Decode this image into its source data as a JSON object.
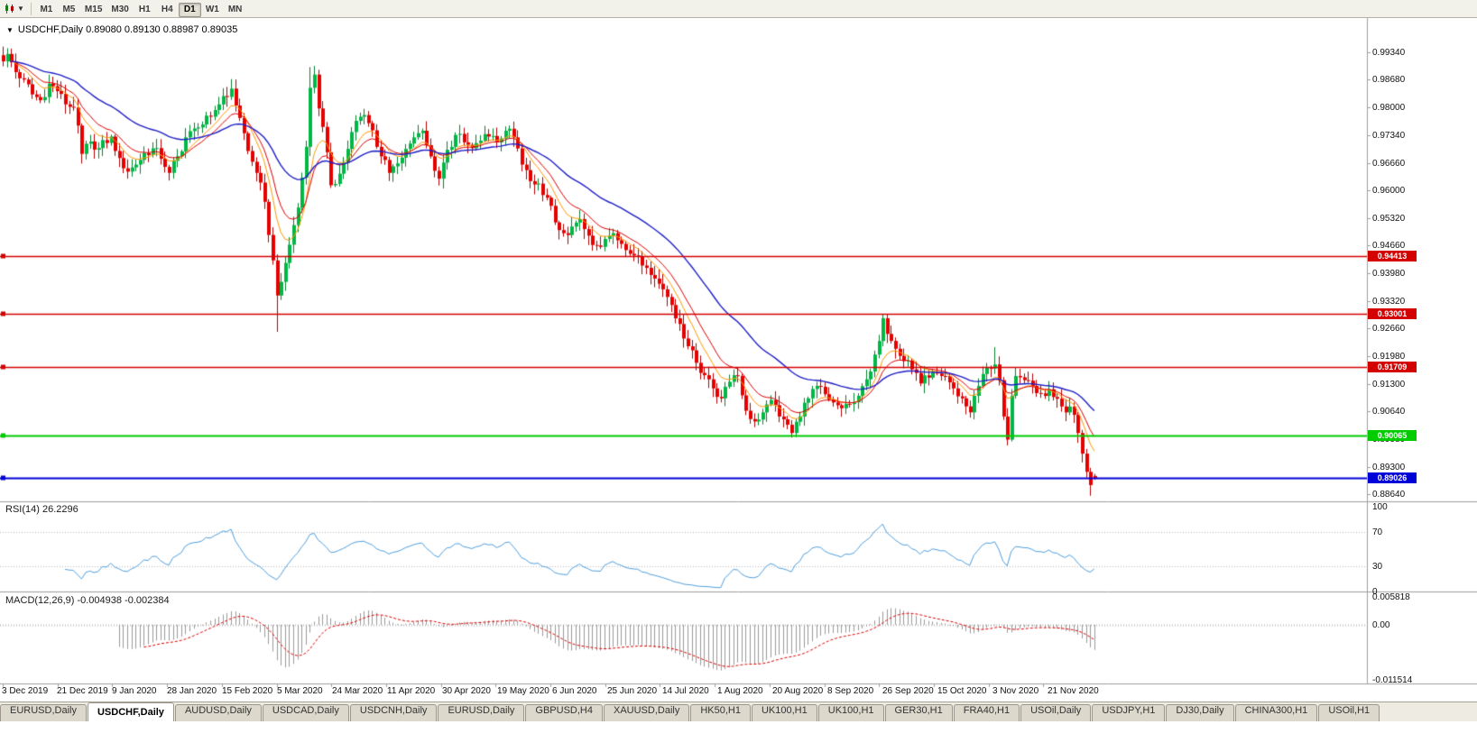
{
  "window": {
    "chart_title": "USDCHF,Daily 0.89080 0.89130 0.88987 0.89035"
  },
  "toolbar": {
    "timeframes": [
      {
        "label": "M1",
        "active": false
      },
      {
        "label": "M5",
        "active": false
      },
      {
        "label": "M15",
        "active": false
      },
      {
        "label": "M30",
        "active": false
      },
      {
        "label": "H1",
        "active": false
      },
      {
        "label": "H4",
        "active": false
      },
      {
        "label": "D1",
        "active": true
      },
      {
        "label": "W1",
        "active": false
      },
      {
        "label": "MN",
        "active": false
      }
    ]
  },
  "main_chart": {
    "y_axis_labels": [
      "0.99340",
      "0.98680",
      "0.98000",
      "0.97340",
      "0.96660",
      "0.96000",
      "0.95320",
      "0.94660",
      "0.93980",
      "0.93320",
      "0.92660",
      "0.91980",
      "0.91300",
      "0.90640",
      "0.89980",
      "0.89300",
      "0.88640"
    ],
    "price_lines": [
      {
        "label": "0.94413",
        "value": 0.94413,
        "color": "#d40000",
        "width": 1.5
      },
      {
        "label": "0.93001",
        "value": 0.93001,
        "color": "#d40000",
        "width": 1.5
      },
      {
        "label": "0.91709",
        "value": 0.91709,
        "color": "#d40000",
        "width": 1.5
      },
      {
        "label": "0.90065",
        "value": 0.90065,
        "color": "#00cc00",
        "width": 2
      },
      {
        "label": "0.89026",
        "value": 0.89026,
        "color": "#0000d8",
        "width": 2
      }
    ]
  },
  "rsi_panel": {
    "label": "RSI(14) 26.2296",
    "period": 14,
    "levels": [
      "100",
      "70",
      "30",
      "0"
    ],
    "line_color": "#4f9fdf"
  },
  "macd_panel": {
    "label": "MACD(12,26,9) -0.004938 -0.002384",
    "scale_labels": [
      "0.005818",
      "0.00",
      "-0.011514"
    ],
    "max": 0.005818,
    "min": -0.011514,
    "histogram_color": "#9a9a9a",
    "signal_color": "#e00000"
  },
  "tabs": {
    "items": [
      {
        "label": "EURUSD,Daily",
        "active": false
      },
      {
        "label": "USDCHF,Daily",
        "active": true
      },
      {
        "label": "AUDUSD,Daily",
        "active": false
      },
      {
        "label": "USDCAD,Daily",
        "active": false
      },
      {
        "label": "USDCNH,Daily",
        "active": false
      },
      {
        "label": "EURUSD,Daily",
        "active": false
      },
      {
        "label": "GBPUSD,H4",
        "active": false
      },
      {
        "label": "XAUUSD,Daily",
        "active": false
      },
      {
        "label": "HK50,H1",
        "active": false
      },
      {
        "label": "UK100,H1",
        "active": false
      },
      {
        "label": "UK100,H1",
        "active": false
      },
      {
        "label": "GER30,H1",
        "active": false
      },
      {
        "label": "FRA40,H1",
        "active": false
      },
      {
        "label": "USOil,Daily",
        "active": false
      },
      {
        "label": "USDJPY,H1",
        "active": false
      },
      {
        "label": "DJ30,Daily",
        "active": false
      },
      {
        "label": "CHINA300,H1",
        "active": false
      },
      {
        "label": "USOil,H1",
        "active": false
      }
    ]
  },
  "chart_data": {
    "type": "candlestick",
    "symbol": "USDCHF",
    "timeframe": "Daily",
    "ohlc_current": {
      "open": 0.8908,
      "high": 0.8913,
      "low": 0.88987,
      "close": 0.89035
    },
    "bars": 264,
    "ylim": [
      0.8864,
      0.9934
    ],
    "colors": {
      "up": "#00b845",
      "down": "#e60000",
      "up_wick": "#067f2e",
      "down_wick": "#b50000"
    },
    "moving_averages": [
      {
        "period": 8,
        "color": "#ff9900",
        "width": 1
      },
      {
        "period": 13,
        "color": "#e00000",
        "width": 1
      },
      {
        "period": 34,
        "color": "#1f1fc8",
        "width": 1.4
      }
    ],
    "x_labels": [
      "3 Dec 2019",
      "21 Dec 2019",
      "9 Jan 2020",
      "28 Jan 2020",
      "15 Feb 2020",
      "5 Mar 2020",
      "24 Mar 2020",
      "11 Apr 2020",
      "30 Apr 2020",
      "19 May 2020",
      "6 Jun 2020",
      "25 Jun 2020",
      "14 Jul 2020",
      "1 Aug 2020",
      "20 Aug 2020",
      "8 Sep 2020",
      "26 Sep 2020",
      "15 Oct 2020",
      "3 Nov 2020",
      "21 Nov 2020"
    ],
    "price_path": [
      [
        0,
        0.9912
      ],
      [
        1,
        0.993
      ],
      [
        3,
        0.9886
      ],
      [
        5,
        0.9868
      ],
      [
        7,
        0.9832
      ],
      [
        9,
        0.9818
      ],
      [
        11,
        0.9858
      ],
      [
        13,
        0.984
      ],
      [
        15,
        0.9808
      ],
      [
        17,
        0.98
      ],
      [
        19,
        0.9688
      ],
      [
        21,
        0.9718
      ],
      [
        23,
        0.9702
      ],
      [
        26,
        0.973
      ],
      [
        28,
        0.9678
      ],
      [
        30,
        0.9645
      ],
      [
        32,
        0.9662
      ],
      [
        34,
        0.969
      ],
      [
        37,
        0.9702
      ],
      [
        40,
        0.9642
      ],
      [
        42,
        0.9682
      ],
      [
        44,
        0.9728
      ],
      [
        47,
        0.9752
      ],
      [
        50,
        0.9778
      ],
      [
        53,
        0.9828
      ],
      [
        55,
        0.9846
      ],
      [
        57,
        0.9775
      ],
      [
        59,
        0.9695
      ],
      [
        61,
        0.9642
      ],
      [
        63,
        0.9572
      ],
      [
        65,
        0.943
      ],
      [
        66,
        0.9345
      ],
      [
        67,
        0.9378
      ],
      [
        69,
        0.9468
      ],
      [
        71,
        0.9558
      ],
      [
        73,
        0.9705
      ],
      [
        74,
        0.9848
      ],
      [
        75,
        0.988
      ],
      [
        76,
        0.9798
      ],
      [
        78,
        0.9692
      ],
      [
        79,
        0.9612
      ],
      [
        81,
        0.964
      ],
      [
        83,
        0.97
      ],
      [
        85,
        0.9768
      ],
      [
        87,
        0.9782
      ],
      [
        89,
        0.9745
      ],
      [
        91,
        0.9682
      ],
      [
        93,
        0.9642
      ],
      [
        95,
        0.9665
      ],
      [
        97,
        0.97
      ],
      [
        99,
        0.9728
      ],
      [
        101,
        0.9744
      ],
      [
        103,
        0.9682
      ],
      [
        105,
        0.9628
      ],
      [
        107,
        0.9698
      ],
      [
        109,
        0.9734
      ],
      [
        111,
        0.9716
      ],
      [
        113,
        0.9702
      ],
      [
        115,
        0.972
      ],
      [
        117,
        0.973
      ],
      [
        119,
        0.9716
      ],
      [
        121,
        0.9744
      ],
      [
        123,
        0.9728
      ],
      [
        125,
        0.9662
      ],
      [
        127,
        0.9622
      ],
      [
        129,
        0.9616
      ],
      [
        131,
        0.9582
      ],
      [
        133,
        0.9522
      ],
      [
        135,
        0.9496
      ],
      [
        137,
        0.9512
      ],
      [
        139,
        0.953
      ],
      [
        141,
        0.949
      ],
      [
        143,
        0.9466
      ],
      [
        145,
        0.9482
      ],
      [
        147,
        0.9496
      ],
      [
        149,
        0.947
      ],
      [
        151,
        0.9446
      ],
      [
        153,
        0.944
      ],
      [
        155,
        0.9412
      ],
      [
        157,
        0.9386
      ],
      [
        159,
        0.936
      ],
      [
        161,
        0.9322
      ],
      [
        163,
        0.9276
      ],
      [
        165,
        0.9222
      ],
      [
        167,
        0.9182
      ],
      [
        169,
        0.9152
      ],
      [
        171,
        0.912
      ],
      [
        173,
        0.9096
      ],
      [
        175,
        0.9136
      ],
      [
        177,
        0.915
      ],
      [
        179,
        0.9066
      ],
      [
        181,
        0.904
      ],
      [
        183,
        0.9062
      ],
      [
        185,
        0.9092
      ],
      [
        187,
        0.9052
      ],
      [
        189,
        0.9032
      ],
      [
        190,
        0.9012
      ],
      [
        192,
        0.9052
      ],
      [
        194,
        0.9096
      ],
      [
        196,
        0.9126
      ],
      [
        198,
        0.9106
      ],
      [
        200,
        0.9086
      ],
      [
        202,
        0.9072
      ],
      [
        204,
        0.9082
      ],
      [
        206,
        0.9102
      ],
      [
        208,
        0.9142
      ],
      [
        210,
        0.9202
      ],
      [
        212,
        0.929
      ],
      [
        213,
        0.9252
      ],
      [
        215,
        0.9216
      ],
      [
        217,
        0.9186
      ],
      [
        219,
        0.9166
      ],
      [
        221,
        0.9132
      ],
      [
        223,
        0.9146
      ],
      [
        225,
        0.9156
      ],
      [
        227,
        0.915
      ],
      [
        229,
        0.912
      ],
      [
        231,
        0.9096
      ],
      [
        233,
        0.9062
      ],
      [
        235,
        0.9126
      ],
      [
        237,
        0.917
      ],
      [
        239,
        0.9178
      ],
      [
        240,
        0.914
      ],
      [
        241,
        0.9052
      ],
      [
        242,
        0.8996
      ],
      [
        243,
        0.9102
      ],
      [
        244,
        0.915
      ],
      [
        246,
        0.914
      ],
      [
        248,
        0.9126
      ],
      [
        250,
        0.9108
      ],
      [
        252,
        0.9118
      ],
      [
        254,
        0.9095
      ],
      [
        256,
        0.9062
      ],
      [
        257,
        0.9076
      ],
      [
        258,
        0.9056
      ],
      [
        259,
        0.9012
      ],
      [
        260,
        0.8962
      ],
      [
        261,
        0.8918
      ],
      [
        262,
        0.8886
      ],
      [
        263,
        0.89035
      ]
    ],
    "wick_events": [
      {
        "bar": 66,
        "low": 0.9257
      },
      {
        "bar": 74,
        "high": 0.9898
      },
      {
        "bar": 75,
        "high": 0.9901
      },
      {
        "bar": 212,
        "high": 0.93
      },
      {
        "bar": 239,
        "high": 0.922
      },
      {
        "bar": 242,
        "low": 0.8982
      },
      {
        "bar": 262,
        "low": 0.886
      }
    ]
  }
}
